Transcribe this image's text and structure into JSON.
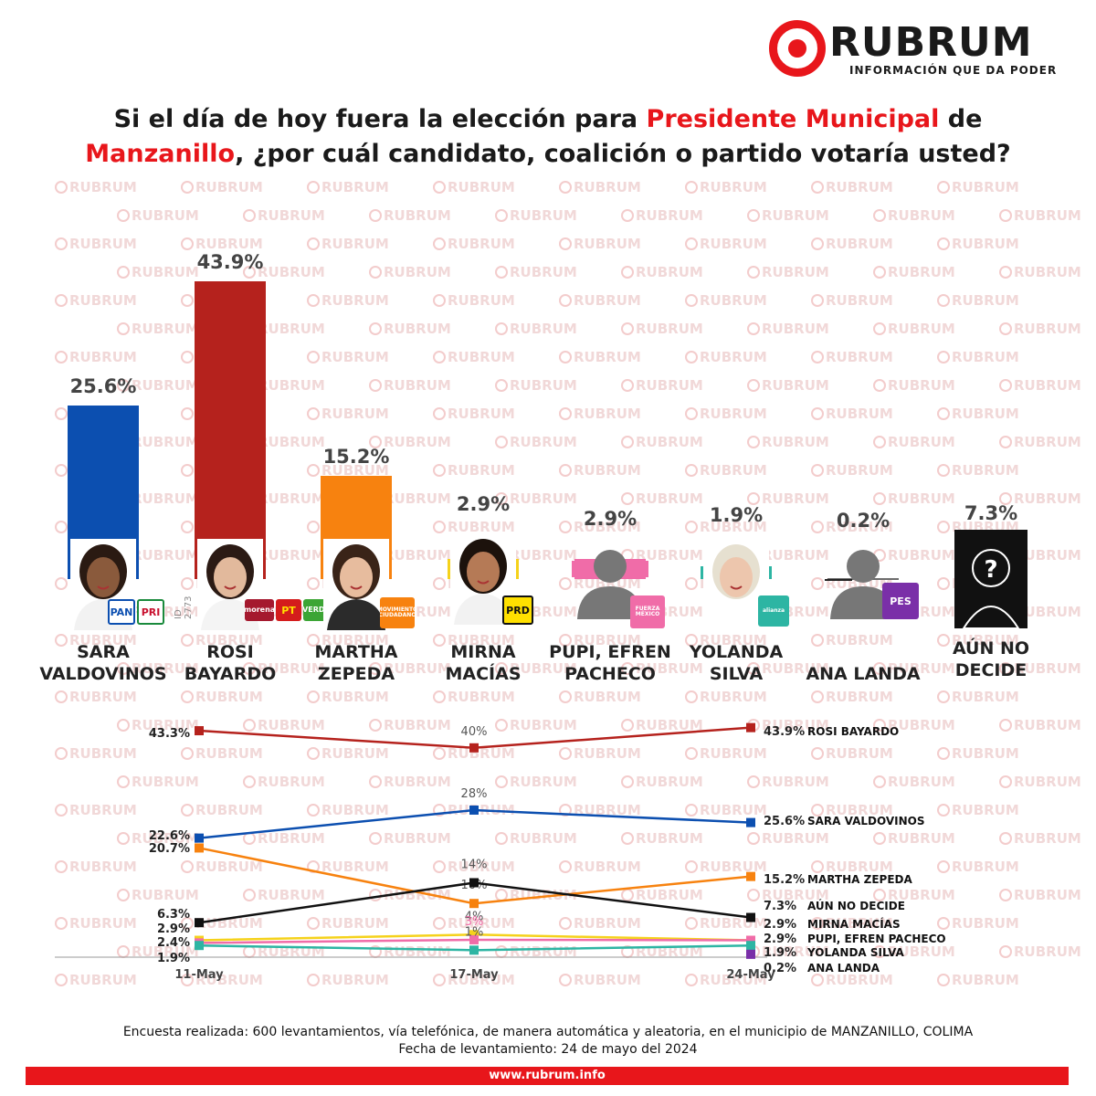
{
  "brand": {
    "name": "RUBRUM",
    "tagline": "INFORMACIÓN QUE DA PODER",
    "watermark": "RUBRUM",
    "url": "www.rubrum.info",
    "accent": "#e8161b"
  },
  "title": {
    "part1": "Si el día de hoy fuera la elección para ",
    "highlight1": "Presidente Municipal",
    "part2": " de",
    "highlight2": "Manzanillo",
    "part3": ", ¿por cuál candidato, coalición o partido votaría usted?"
  },
  "photo_id": "ID 2773",
  "candidates": [
    {
      "name_line1": "SARA",
      "name_line2": "VALDOVINOS",
      "label": "25.6%",
      "party_badges": [
        "PAN",
        "PRI"
      ]
    },
    {
      "name_line1": "ROSI",
      "name_line2": "BAYARDO",
      "label": "43.9%",
      "party_badges": [
        "morena",
        "PT",
        "VERDE"
      ]
    },
    {
      "name_line1": "MARTHA",
      "name_line2": "ZEPEDA",
      "label": "15.2%",
      "party_badges": [
        "MOVIMIENTO CIUDADANO"
      ]
    },
    {
      "name_line1": "MIRNA",
      "name_line2": "MACÍAS",
      "label": "2.9%",
      "party_badges": [
        "PRD"
      ]
    },
    {
      "name_line1": "PUPI, EFREN",
      "name_line2": "PACHECO",
      "label": "2.9%",
      "party_badges": [
        "FUERZA MÉXICO"
      ]
    },
    {
      "name_line1": "YOLANDA",
      "name_line2": "SILVA",
      "label": "1.9%",
      "party_badges": [
        "alianza"
      ]
    },
    {
      "name_line1": "",
      "name_line2": "ANA LANDA",
      "label": "0.2%",
      "party_badges": [
        "PES"
      ]
    },
    {
      "name_line1": "AÚN NO",
      "name_line2": "DECIDE",
      "label": "7.3%",
      "party_badges": []
    }
  ],
  "chart_data": [
    {
      "type": "bar",
      "categories": [
        "SARA VALDOVINOS",
        "ROSI BAYARDO",
        "MARTHA ZEPEDA",
        "MIRNA MACÍAS",
        "PUPI, EFREN PACHECO",
        "YOLANDA SILVA",
        "ANA LANDA",
        "AÚN NO DECIDE"
      ],
      "values": [
        25.6,
        43.9,
        15.2,
        2.9,
        2.9,
        1.9,
        0.2,
        7.3
      ],
      "data_labels": [
        "25.6%",
        "43.9%",
        "15.2%",
        "2.9%",
        "2.9%",
        "1.9%",
        "0.2%",
        "7.3%"
      ],
      "colors": [
        "#0c4fb0",
        "#b5221d",
        "#f7820f",
        "#f5d21b",
        "#f06ca8",
        "#2db5a3",
        "#6c6c6c",
        "#111111"
      ],
      "unit": "%",
      "ylim": [
        0,
        43.9
      ]
    },
    {
      "type": "line",
      "x": [
        "11-May",
        "17-May",
        "24-May"
      ],
      "ylim": [
        0,
        45
      ],
      "series": [
        {
          "name": "ROSI BAYARDO",
          "color": "#b5221d",
          "values": [
            43.3,
            40,
            43.9
          ],
          "labels": [
            "43.3%",
            "40%",
            "43.9%"
          ],
          "marker": "square"
        },
        {
          "name": "SARA VALDOVINOS",
          "color": "#0c4fb0",
          "values": [
            22.6,
            28,
            25.6
          ],
          "labels": [
            "22.6%",
            "28%",
            "25.6%"
          ],
          "marker": "square"
        },
        {
          "name": "MARTHA ZEPEDA",
          "color": "#f7820f",
          "values": [
            20.7,
            10,
            15.2
          ],
          "labels": [
            "20.7%",
            "10%",
            "15.2%"
          ],
          "marker": "square"
        },
        {
          "name": "AÚN NO DECIDE",
          "color": "#111111",
          "values": [
            6.3,
            14,
            7.3
          ],
          "labels": [
            "6.3%",
            "14%",
            "7.3%"
          ],
          "marker": "square"
        },
        {
          "name": "MIRNA MACÍAS",
          "color": "#f5d21b",
          "values": [
            2.9,
            4,
            2.9
          ],
          "labels": [
            "2.9%",
            "4%",
            "2.9%"
          ],
          "marker": "square"
        },
        {
          "name": "PUPI, EFREN PACHECO",
          "color": "#f06ca8",
          "values": [
            2.4,
            3,
            2.9
          ],
          "labels": [
            "2.4%",
            "3%",
            "2.9%"
          ],
          "marker": "square"
        },
        {
          "name": "YOLANDA SILVA",
          "color": "#2db5a3",
          "values": [
            1.9,
            1,
            1.9
          ],
          "labels": [
            "1.9%",
            "1%",
            "1.9%"
          ],
          "marker": "square"
        },
        {
          "name": "ANA LANDA",
          "color": "#7a2fa8",
          "values": [
            null,
            null,
            0.2
          ],
          "labels": [
            "",
            "",
            "0.2%"
          ],
          "marker": "square"
        }
      ]
    }
  ],
  "footer": {
    "line1": "Encuesta realizada: 600 levantamientos, vía telefónica, de manera automática y aleatoria, en el municipio de MANZANILLO, COLIMA",
    "line2": "Fecha de levantamiento: 24 de mayo del 2024"
  }
}
